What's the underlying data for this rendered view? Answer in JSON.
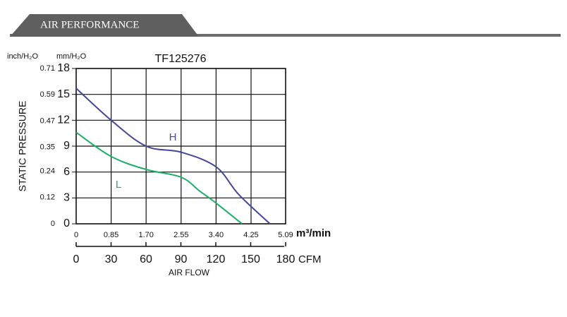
{
  "header": {
    "title": "AIR PERFORMANCE"
  },
  "chart_data": {
    "type": "line",
    "title": "TF125276",
    "y_label": "STATIC PRESSURE",
    "y_unit": "mm/H₂O",
    "y2_unit": "inch/H₂O",
    "x_unit": "m³/min",
    "x2_unit": "CFM",
    "x2_label": "AIR FLOW",
    "xlim": [
      0,
      5.09
    ],
    "xticks": [
      0,
      0.85,
      {
        "value": 1.7,
        "label": "1.70"
      },
      2.55,
      {
        "value": 3.4,
        "label": "3.40"
      },
      4.25,
      5.09
    ],
    "ylim": [
      0,
      18
    ],
    "yticks": [
      0,
      3,
      6,
      9,
      12,
      15,
      18
    ],
    "y2lim": [
      0,
      0.71
    ],
    "y2ticks": [
      0,
      0.12,
      0.24,
      0.35,
      0.47,
      0.59,
      0.71
    ],
    "x2lim": [
      0,
      180
    ],
    "x2ticks": [
      0,
      30,
      60,
      90,
      120,
      150,
      180
    ],
    "grid": true,
    "series": [
      {
        "name": "H",
        "color": "#45479a",
        "x": [
          0,
          0.85,
          1.7,
          2.55,
          3.4,
          3.95,
          4.71
        ],
        "values": [
          15.7,
          12.0,
          9.0,
          8.3,
          6.6,
          3.4,
          0
        ]
      },
      {
        "name": "L",
        "color": "#1fae68",
        "x": [
          0,
          0.85,
          1.7,
          2.55,
          3.0,
          3.4,
          4.03
        ],
        "values": [
          10.6,
          7.8,
          6.3,
          5.4,
          3.8,
          2.4,
          0
        ]
      }
    ]
  }
}
